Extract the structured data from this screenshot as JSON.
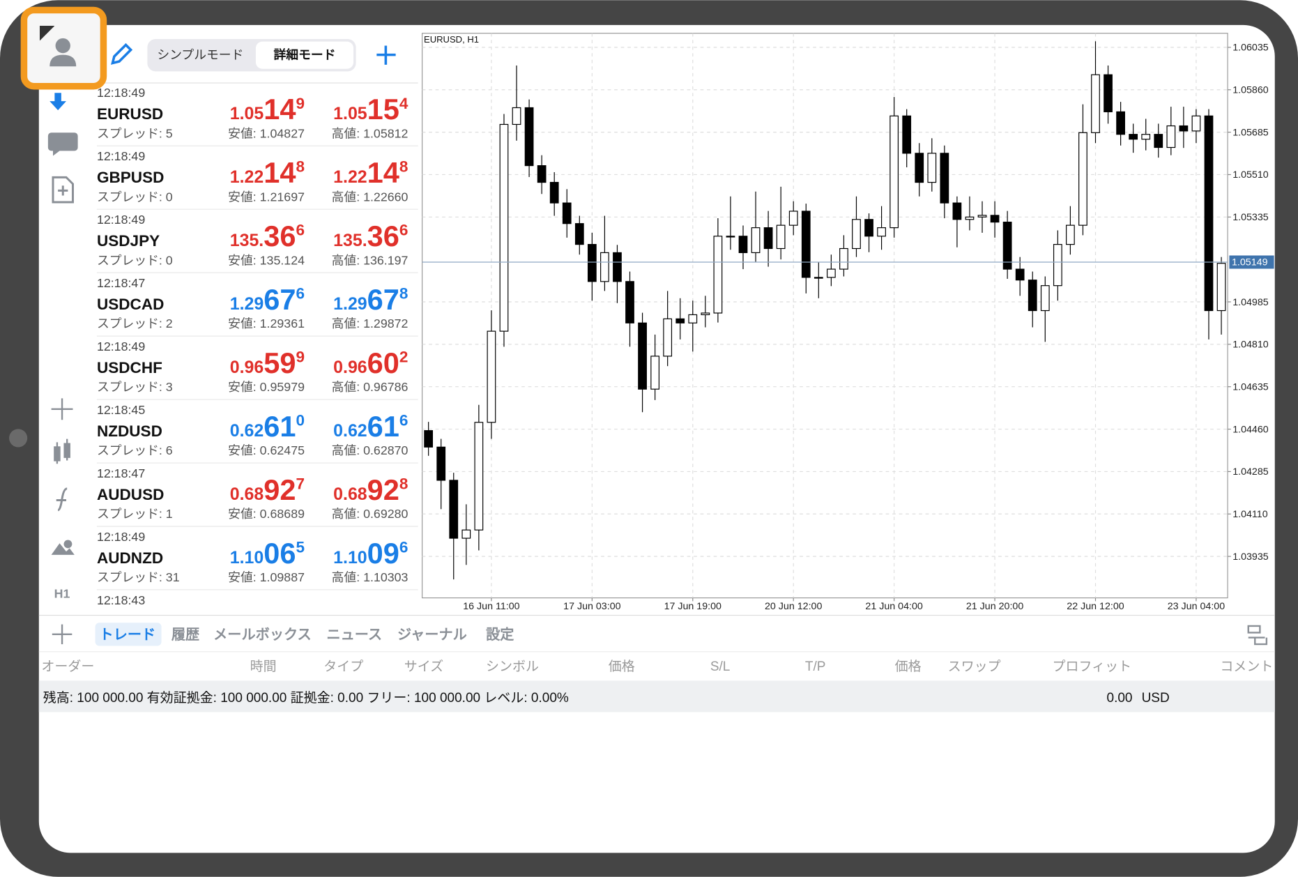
{
  "toolbar": {
    "modes": [
      "シンプルモード",
      "詳細モード"
    ]
  },
  "sidebar": {
    "timeframe": "H1"
  },
  "watchlist": [
    {
      "time": "12:18:49",
      "symbol": "EURUSD",
      "spread": "スプレッド: 5",
      "bid": [
        "1.05",
        "14",
        "9"
      ],
      "ask": [
        "1.05",
        "15",
        "4"
      ],
      "low": "安値: 1.04827",
      "high": "高値: 1.05812",
      "color": "#e0302a"
    },
    {
      "time": "12:18:49",
      "symbol": "GBPUSD",
      "spread": "スプレッド: 0",
      "bid": [
        "1.22",
        "14",
        "8"
      ],
      "ask": [
        "1.22",
        "14",
        "8"
      ],
      "low": "安値: 1.21697",
      "high": "高値: 1.22660",
      "color": "#e0302a"
    },
    {
      "time": "12:18:49",
      "symbol": "USDJPY",
      "spread": "スプレッド: 0",
      "bid": [
        "135.",
        "36",
        "6"
      ],
      "ask": [
        "135.",
        "36",
        "6"
      ],
      "low": "安値: 135.124",
      "high": "高値: 136.197",
      "color": "#e0302a"
    },
    {
      "time": "12:18:47",
      "symbol": "USDCAD",
      "spread": "スプレッド: 2",
      "bid": [
        "1.29",
        "67",
        "6"
      ],
      "ask": [
        "1.29",
        "67",
        "8"
      ],
      "low": "安値: 1.29361",
      "high": "高値: 1.29872",
      "color": "#1a7ee6"
    },
    {
      "time": "12:18:49",
      "symbol": "USDCHF",
      "spread": "スプレッド: 3",
      "bid": [
        "0.96",
        "59",
        "9"
      ],
      "ask": [
        "0.96",
        "60",
        "2"
      ],
      "low": "安値: 0.95979",
      "high": "高値: 0.96786",
      "color": "#e0302a"
    },
    {
      "time": "12:18:45",
      "symbol": "NZDUSD",
      "spread": "スプレッド: 6",
      "bid": [
        "0.62",
        "61",
        "0"
      ],
      "ask": [
        "0.62",
        "61",
        "6"
      ],
      "low": "安値: 0.62475",
      "high": "高値: 0.62870",
      "color": "#1a7ee6"
    },
    {
      "time": "12:18:47",
      "symbol": "AUDUSD",
      "spread": "スプレッド: 1",
      "bid": [
        "0.68",
        "92",
        "7"
      ],
      "ask": [
        "0.68",
        "92",
        "8"
      ],
      "low": "安値: 0.68689",
      "high": "高値: 0.69280",
      "color": "#e0302a"
    },
    {
      "time": "12:18:49",
      "symbol": "AUDNZD",
      "spread": "スプレッド: 31",
      "bid": [
        "1.10",
        "06",
        "5"
      ],
      "ask": [
        "1.10",
        "09",
        "6"
      ],
      "low": "安値: 1.09887",
      "high": "高値: 1.10303",
      "color": "#1a7ee6"
    },
    {
      "time": "12:18:43"
    }
  ],
  "chart_data": {
    "type": "candlestick",
    "title": "EURUSD, H1",
    "open": [
      1.04454,
      1.04386,
      1.04249,
      1.0401,
      1.04044,
      1.04488,
      1.04864,
      1.05717,
      1.05786,
      1.05547,
      1.05478,
      1.05393,
      1.05308,
      1.05222,
      1.05069,
      1.05188,
      1.05069,
      1.04898,
      1.04625,
      1.04761,
      1.04915,
      1.04898,
      1.04932,
      1.04939,
      1.05256,
      1.05256,
      1.05188,
      1.05291,
      1.05205,
      1.05301,
      1.05359,
      1.05086,
      1.05086,
      1.0512,
      1.05205,
      1.05325,
      1.05256,
      1.05291,
      1.05752,
      1.05598,
      1.05478,
      1.05598,
      1.05393,
      1.05325,
      1.05335,
      1.05342,
      1.05314,
      1.0512,
      1.05075,
      1.04949,
      1.05052,
      1.05222,
      1.05301,
      1.05683,
      1.05922,
      1.05769,
      1.05676,
      1.05656,
      1.05676,
      1.05622,
      1.05711,
      1.0569,
      1.05752,
      1.04949
    ],
    "high": [
      1.0449,
      1.0442,
      1.0428,
      1.0415,
      1.0456,
      1.0495,
      1.0576,
      1.0596,
      1.0582,
      1.0559,
      1.0552,
      1.0545,
      1.0534,
      1.0527,
      1.0534,
      1.0522,
      1.0511,
      1.0494,
      1.0485,
      1.0503,
      1.05,
      1.0499,
      1.0501,
      1.0533,
      1.0542,
      1.053,
      1.0544,
      1.0536,
      1.0546,
      1.054,
      1.0539,
      1.0515,
      1.0518,
      1.0526,
      1.0542,
      1.0535,
      1.0538,
      1.0583,
      1.0578,
      1.0564,
      1.0566,
      1.0563,
      1.0542,
      1.0542,
      1.054,
      1.054,
      1.0536,
      1.0517,
      1.0511,
      1.0509,
      1.0528,
      1.0538,
      1.058,
      1.0606,
      1.0596,
      1.0581,
      1.0572,
      1.0574,
      1.0572,
      1.0579,
      1.0579,
      1.0578,
      1.0578,
      1.0517
    ],
    "low": [
      1.0435,
      1.0413,
      1.0384,
      1.039,
      1.0396,
      1.0442,
      1.048,
      1.0565,
      1.055,
      1.0543,
      1.0534,
      1.0525,
      1.0518,
      1.0499,
      1.0503,
      1.0498,
      1.048,
      1.0453,
      1.0458,
      1.0472,
      1.0483,
      1.0478,
      1.0488,
      1.049,
      1.052,
      1.0512,
      1.0515,
      1.0513,
      1.0516,
      1.0526,
      1.0502,
      1.05,
      1.0505,
      1.0509,
      1.0517,
      1.0519,
      1.052,
      1.0525,
      1.0554,
      1.0542,
      1.0544,
      1.0533,
      1.0521,
      1.0528,
      1.0527,
      1.0525,
      1.0508,
      1.0501,
      1.0488,
      1.0482,
      1.0499,
      1.0518,
      1.0526,
      1.0564,
      1.0572,
      1.0563,
      1.056,
      1.0561,
      1.0558,
      1.0559,
      1.0562,
      1.0564,
      1.0483,
      1.0485
    ],
    "close": [
      1.04386,
      1.04249,
      1.0401,
      1.04044,
      1.04488,
      1.04864,
      1.05717,
      1.05786,
      1.05547,
      1.05478,
      1.05393,
      1.05308,
      1.05222,
      1.05069,
      1.05188,
      1.05069,
      1.04898,
      1.04625,
      1.04761,
      1.04915,
      1.04898,
      1.04932,
      1.04939,
      1.05256,
      1.05256,
      1.05188,
      1.05291,
      1.05205,
      1.05301,
      1.05359,
      1.05086,
      1.05086,
      1.0512,
      1.05205,
      1.05325,
      1.05256,
      1.05291,
      1.05752,
      1.05598,
      1.05478,
      1.05598,
      1.05393,
      1.05325,
      1.05335,
      1.05342,
      1.05314,
      1.0512,
      1.05075,
      1.04949,
      1.05052,
      1.05222,
      1.05301,
      1.05683,
      1.05922,
      1.05769,
      1.05676,
      1.05656,
      1.05676,
      1.05622,
      1.05711,
      1.0569,
      1.05752,
      1.04949,
      1.05144
    ],
    "up_color": "#ffffff",
    "down_color": "#000000",
    "ylim": [
      1.03764,
      1.06093
    ],
    "yticks": [
      1.06035,
      {
        "value": 1.0586,
        "label": "1.05860"
      },
      1.05685,
      {
        "value": 1.0551,
        "label": "1.05510"
      },
      1.05335,
      1.04985,
      {
        "value": 1.0481,
        "label": "1.04810"
      },
      1.04635,
      {
        "value": 1.0446,
        "label": "1.04460"
      },
      1.04285,
      {
        "value": 1.0411,
        "label": "1.04110"
      },
      1.03935
    ],
    "xticks": [
      {
        "value": 5,
        "label": "16 Jun 11:00"
      },
      {
        "value": 13,
        "label": "17 Jun 03:00"
      },
      {
        "value": 21,
        "label": "17 Jun 19:00"
      },
      {
        "value": 29,
        "label": "20 Jun 12:00"
      },
      {
        "value": 37,
        "label": "21 Jun 04:00"
      },
      {
        "value": 45,
        "label": "21 Jun 20:00"
      },
      {
        "value": 53,
        "label": "22 Jun 12:00"
      },
      {
        "value": 61,
        "label": "23 Jun 04:00"
      }
    ],
    "current_price": 1.05149,
    "grid": true
  },
  "terminal": {
    "tabs": [
      "トレード",
      "履歴",
      "メールボックス",
      "ニュース",
      "ジャーナル",
      "設定"
    ],
    "columns": [
      "オーダー",
      "時間",
      "タイプ",
      "サイズ",
      "シンボル",
      "価格",
      "S/L",
      "T/P",
      "価格",
      "スワップ",
      "プロフィット",
      "コメント"
    ],
    "status": "残高: 100 000.00 有効証拠金: 100 000.00 証拠金: 0.00 フリー: 100 000.00 レベル: 0.00%",
    "profit": "0.00",
    "currency": "USD"
  }
}
